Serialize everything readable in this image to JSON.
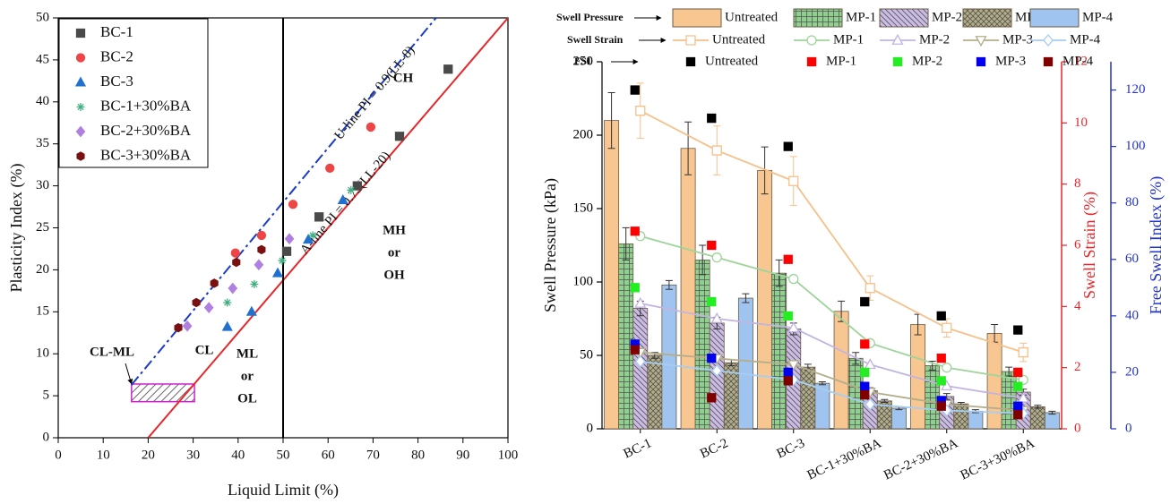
{
  "chart_data": [
    {
      "type": "scatter",
      "xlabel": "Liquid Limit (%)",
      "ylabel": "Plasticity Index (%)",
      "xlim": [
        0,
        100
      ],
      "xticks": [
        0,
        10,
        20,
        30,
        40,
        50,
        60,
        70,
        80,
        90,
        100
      ],
      "ylim": [
        0,
        50
      ],
      "yticks": [
        0,
        5,
        10,
        15,
        20,
        25,
        30,
        35,
        40,
        45,
        50
      ],
      "series": [
        {
          "name": "BC-1",
          "color": "#4a4a4a",
          "marker": "square",
          "x": [
            50.8,
            58.0,
            66.5,
            75.9,
            86.7
          ],
          "values": [
            22.2,
            26.3,
            30.0,
            35.9,
            43.9
          ]
        },
        {
          "name": "BC-2",
          "color": "#f04545",
          "marker": "circle",
          "x": [
            39.4,
            45.2,
            52.2,
            60.4,
            69.5
          ],
          "values": [
            22.0,
            24.1,
            27.8,
            32.1,
            37.0
          ]
        },
        {
          "name": "BC-3",
          "color": "#2070d0",
          "marker": "triangle",
          "x": [
            37.6,
            43.0,
            48.8,
            55.6,
            63.3
          ],
          "values": [
            13.2,
            15.0,
            19.6,
            23.6,
            28.3
          ]
        },
        {
          "name": "BC-1+30%BA",
          "color": "#40b080",
          "marker": "asterisk",
          "x": [
            37.6,
            43.6,
            49.8,
            56.6,
            65.1
          ],
          "values": [
            16.1,
            18.3,
            21.1,
            24.1,
            29.5
          ]
        },
        {
          "name": "BC-2+30%BA",
          "color": "#b080e0",
          "marker": "diamond",
          "x": [
            28.7,
            33.5,
            38.8,
            44.6,
            51.4
          ],
          "values": [
            13.3,
            15.5,
            17.8,
            20.6,
            23.7
          ]
        },
        {
          "name": "BC-3+30%BA",
          "color": "#7a1010",
          "marker": "hexagon",
          "x": [
            26.7,
            30.7,
            34.7,
            39.6,
            45.2
          ],
          "values": [
            13.1,
            16.1,
            18.4,
            20.9,
            22.4
          ]
        }
      ],
      "lines": [
        {
          "label": "U-line PI = 0.9(LL-8)",
          "color": "#1a3cc8",
          "style": "dashdot",
          "x": [
            16.3,
            84
          ],
          "values": [
            6.3,
            50
          ]
        },
        {
          "label": "A-line PI = 0.73(LL-20)",
          "color": "#e8262a",
          "style": "solid",
          "x": [
            20,
            100
          ],
          "values": [
            0,
            50
          ]
        },
        {
          "color": "#000000",
          "style": "solid",
          "x": [
            50,
            50
          ],
          "values": [
            0,
            50
          ]
        }
      ],
      "zone": {
        "label": "CL-ML",
        "color": "#d020d0",
        "x": [
          16.3,
          30.3
        ],
        "values": [
          4.3,
          6.4
        ]
      },
      "annotations": [
        [
          "CH"
        ],
        [
          "CL"
        ],
        [
          "MH",
          "or",
          "OH"
        ],
        [
          "ML",
          "or",
          "OL"
        ]
      ]
    },
    {
      "type": "bar",
      "categories": [
        "BC-1",
        "BC-2",
        "BC-3",
        "BC-1+30%BA",
        "BC-2+30%BA",
        "BC-3+30%BA"
      ],
      "ylabel": "Swell Pressure (kPa)",
      "y2label": "Swell Strain (%)",
      "y3label": "Free Swell Index (%)",
      "ylim": [
        0,
        250
      ],
      "yticks": [
        0,
        50,
        100,
        150,
        200,
        250
      ],
      "y2lim": [
        0,
        12
      ],
      "y2ticks": [
        0,
        2,
        4,
        6,
        8,
        10,
        12
      ],
      "y2color": "#e8262a",
      "y3lim": [
        0,
        130
      ],
      "y3ticks": [
        0,
        20,
        40,
        60,
        80,
        100,
        120
      ],
      "y3color": "#2233cc",
      "groups": [
        {
          "label": "Swell Pressure",
          "type": "bar",
          "axis": "y",
          "series": [
            {
              "name": "Untreated",
              "color": "#f8c690",
              "values": [
                210,
                191,
                176,
                80,
                71,
                65
              ],
              "errors": [
                19,
                18,
                16,
                7,
                7,
                6
              ]
            },
            {
              "name": "MP-1",
              "color": "#8fd08f",
              "values": [
                126,
                115,
                106,
                48,
                43,
                39
              ],
              "errors": [
                11,
                10,
                9,
                4,
                3,
                3
              ]
            },
            {
              "name": "MP-2",
              "color": "#cbbce6",
              "values": [
                82,
                72,
                68,
                26,
                22,
                25
              ],
              "errors": [
                5,
                4,
                4,
                2,
                2,
                2
              ]
            },
            {
              "name": "MP-3",
              "color": "#b4ae86",
              "values": [
                50,
                45,
                42,
                19,
                17,
                15
              ],
              "errors": [
                2,
                2,
                2,
                1,
                1,
                1
              ]
            },
            {
              "name": "MP-4",
              "color": "#9fc4ef",
              "values": [
                98,
                89,
                31,
                14,
                12,
                11
              ],
              "errors": [
                3,
                3,
                1,
                1,
                1,
                1
              ]
            }
          ]
        },
        {
          "label": "Swell Strain",
          "type": "line",
          "axis": "y2",
          "series": [
            {
              "name": "Untreated",
              "color": "#f5c08a",
              "marker": "square",
              "values": [
                10.4,
                9.1,
                8.1,
                4.6,
                3.3,
                2.5
              ],
              "errors": [
                0.9,
                0.8,
                0.8,
                0.4,
                0.3,
                0.3
              ]
            },
            {
              "name": "MP-1",
              "color": "#9ed49a",
              "marker": "circle",
              "values": [
                6.3,
                5.6,
                4.9,
                2.8,
                2.0,
                1.6
              ]
            },
            {
              "name": "MP-2",
              "color": "#c2b4e0",
              "marker": "triangle",
              "values": [
                4.1,
                3.6,
                3.3,
                2.1,
                1.4,
                1.0
              ]
            },
            {
              "name": "MP-3",
              "color": "#b4ad8a",
              "marker": "triangle-down",
              "values": [
                2.5,
                2.3,
                2.1,
                1.2,
                0.8,
                0.6
              ]
            },
            {
              "name": "MP-4",
              "color": "#a6cdf2",
              "marker": "diamond",
              "values": [
                2.2,
                1.9,
                1.6,
                0.8,
                0.6,
                0.5
              ]
            }
          ]
        },
        {
          "label": "FSI",
          "type": "scatter",
          "axis": "y3",
          "series": [
            {
              "name": "Untreated",
              "color": "#000000",
              "marker": "square",
              "values": [
                120,
                110,
                100,
                45,
                40,
                35
              ]
            },
            {
              "name": "MP-1",
              "color": "#ff0000",
              "marker": "square",
              "values": [
                70,
                65,
                60,
                30,
                25,
                20
              ]
            },
            {
              "name": "MP-2",
              "color": "#22ee22",
              "marker": "square",
              "values": [
                50,
                45,
                40,
                20,
                17,
                15
              ]
            },
            {
              "name": "MP-3",
              "color": "#0000ee",
              "marker": "square",
              "values": [
                30,
                25,
                20,
                15,
                10,
                8
              ]
            },
            {
              "name": "MP-4",
              "color": "#800000",
              "marker": "square",
              "values": [
                28,
                11,
                17,
                12,
                8,
                5
              ]
            }
          ]
        }
      ]
    }
  ]
}
